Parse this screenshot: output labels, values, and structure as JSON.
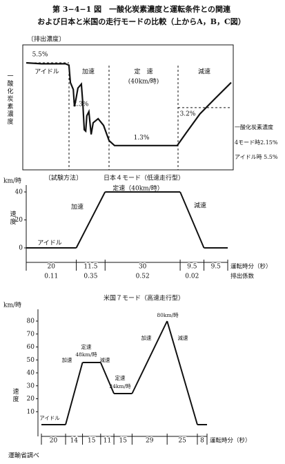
{
  "title": "第 3−4−1 図　一酸化炭素濃度と運転条件との関連",
  "subtitle": "および日本と米国の走行モードの比較（上からA，B，C図）",
  "source": "運輸省調べ",
  "chart_data": [
    {
      "type": "line",
      "header": "〔排出濃度〕",
      "y_label": "一酸化炭素濃度",
      "phases": [
        "アイドル",
        "加速",
        "定　速",
        "(40km/時)",
        "減速"
      ],
      "x": [
        0,
        5.3,
        13.6,
        14.8,
        15.3,
        16.3,
        16.7,
        17.2,
        17.9,
        19.1,
        19.6,
        20.1,
        20.6,
        21.0,
        21.7,
        22.5,
        23.2,
        24.9,
        26.8,
        28.7,
        30.6,
        38.7,
        52.3,
        55.5,
        60.2,
        65.0,
        71.0
      ],
      "values": [
        5.5,
        5.45,
        5.45,
        5.38,
        4.49,
        4.13,
        3.26,
        3.6,
        4.2,
        4.41,
        3.42,
        2.06,
        1.99,
        2.78,
        2.99,
        1.82,
        2.42,
        2.63,
        2.28,
        1.5,
        1.25,
        1.25,
        1.25,
        1.92,
        2.88,
        3.6,
        4.49
      ],
      "xlim": [
        0,
        71
      ],
      "ylim": [
        0,
        6.6
      ],
      "color": "#111111",
      "annotations": [
        {
          "value": 5.5,
          "label": "5.5%"
        },
        {
          "value": 2.3,
          "label": "2.3%"
        },
        {
          "value": 1.3,
          "label": "1.3%"
        },
        {
          "value": 3.2,
          "label": "3.2%"
        }
      ],
      "notes": [
        "一酸化炭素濃度",
        "4モード時2.15%",
        "アイドル時 5.5%"
      ]
    },
    {
      "type": "mode",
      "header": "〔試験方法〕",
      "title": "日本４モード（低速走行型）",
      "y_unit": "km/時",
      "y_label": "速度",
      "phases": [
        "アイドル",
        "加速",
        "定速（40km/時）",
        "減速"
      ],
      "durations": [
        20,
        11.5,
        30,
        9.5,
        9.5
      ],
      "speeds": [
        0,
        0,
        40,
        40,
        0,
        0
      ],
      "coefficients": [
        0.11,
        0.35,
        0.52,
        0.02,
        null
      ],
      "ylim": [
        0,
        40
      ],
      "yticks": [
        0,
        20,
        40
      ],
      "x_label": "運転時分（秒）",
      "coefficient_label": "排出係数",
      "color": "#111111"
    },
    {
      "type": "mode",
      "title": "米国７モード（高速走行型）",
      "y_unit": "km/時",
      "y_label": "速度",
      "phases": [
        "アイドル",
        "加速",
        "定速",
        "48km/時",
        "減速",
        "定速",
        "24km/時",
        "加速",
        "80km/時",
        "減速"
      ],
      "durations": [
        20,
        14,
        15,
        11,
        15,
        29,
        25,
        8
      ],
      "speeds": [
        0,
        0,
        48,
        48,
        24,
        24,
        80,
        0,
        0
      ],
      "ylim": [
        0,
        80
      ],
      "yticks": [
        10,
        20,
        30,
        40,
        50,
        60,
        70,
        80
      ],
      "x_label": "運転時分（秒）",
      "color": "#111111"
    }
  ]
}
